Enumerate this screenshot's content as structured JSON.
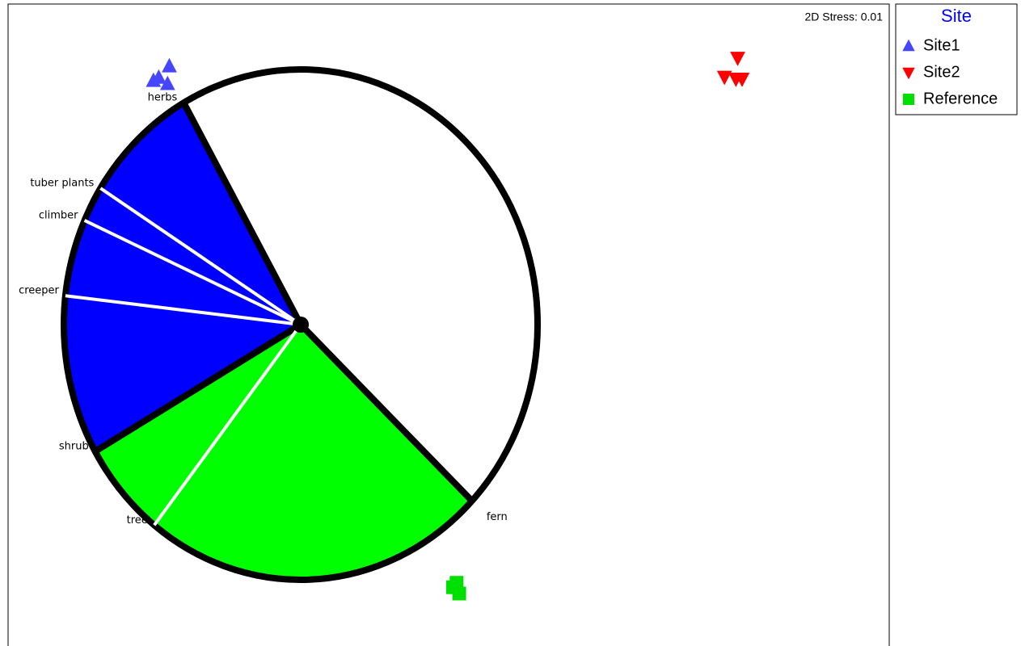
{
  "chart_data": {
    "type": "scatter",
    "annotation": "2D Stress: 0.01",
    "legend_title": "Site",
    "legend_position": "outside right",
    "xlim": [
      0,
      100
    ],
    "ylim": [
      0,
      100
    ],
    "series": [
      {
        "name": "Site1",
        "color": "#4646ff",
        "marker": "triangle-up",
        "x": [
          16.5,
          18.3,
          18.1,
          17.1
        ],
        "y": [
          87.9,
          90.2,
          87.4,
          88.4
        ]
      },
      {
        "name": "Site2",
        "color": "#ff0000",
        "marker": "triangle-down",
        "x": [
          82.8,
          81.3,
          82.6,
          83.3
        ],
        "y": [
          91.5,
          88.5,
          88.2,
          88.2
        ]
      },
      {
        "name": "Reference",
        "color": "#00e000",
        "marker": "square",
        "x": [
          50.5,
          51.2,
          50.9
        ],
        "y": [
          8.0,
          7.0,
          8.7
        ]
      }
    ],
    "vectors": [
      {
        "label": "herbs",
        "angle": 119.6,
        "color": "#0000ff"
      },
      {
        "label": "tuber plants",
        "angle": 147.7,
        "color": "#0000ff"
      },
      {
        "label": "climber",
        "angle": 155.9,
        "color": "#0000ff"
      },
      {
        "label": "creeper",
        "angle": 173.5,
        "color": "#0000ff"
      },
      {
        "label": "shrub",
        "angle": 209.8,
        "color": "#00ff00"
      },
      {
        "label": "tree",
        "angle": 231.8,
        "color": "#00ff00"
      },
      {
        "label": "fern",
        "angle": 316.3,
        "color": "#ffffff"
      }
    ]
  }
}
